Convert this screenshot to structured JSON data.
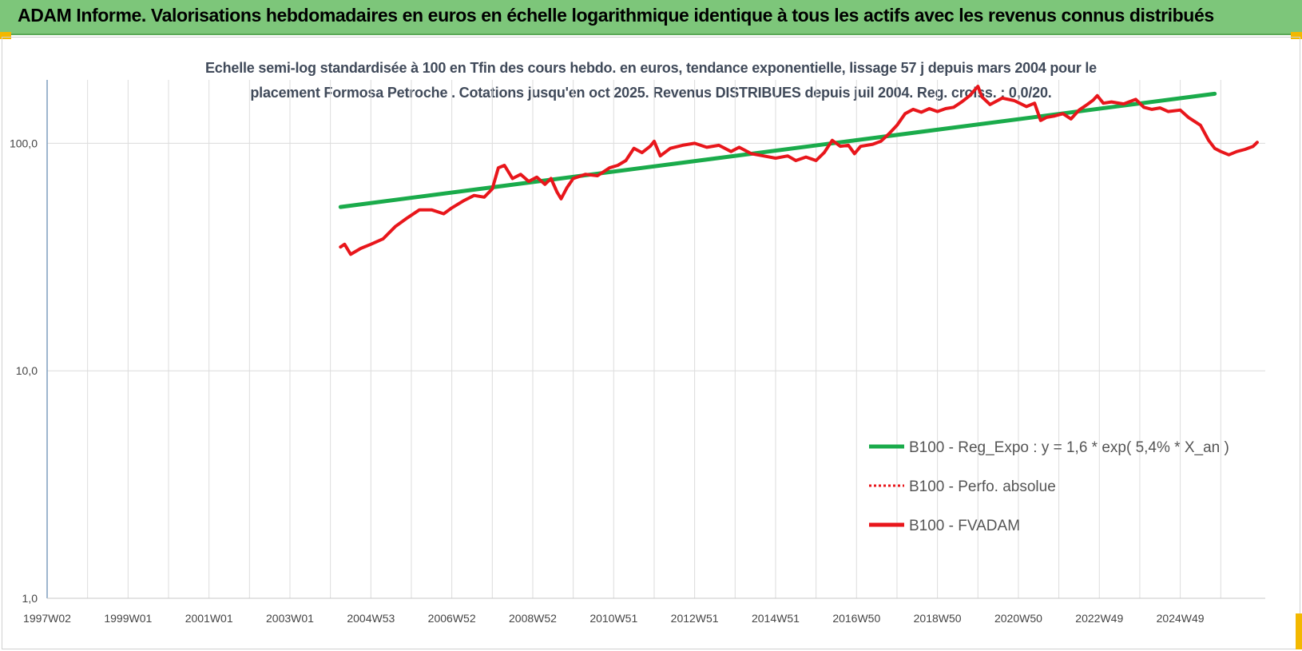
{
  "header": {
    "title": "ADAM Informe. Valorisations hebdomadaires en euros en échelle logarithmique identique à tous les actifs avec les revenus connus distribués"
  },
  "chart_data": {
    "type": "line",
    "title_line1": "Echelle semi-log standardisée à 100 en Tfin des cours hebdo. en euros, tendance exponentielle, lissage 57 j depuis mars 2004 pour le",
    "title_line2": "placement Formosa Petroche . Cotations jusqu'en oct 2025. Revenus DISTRIBUES depuis juil 2004. Reg. croiss. : 0,0/20.",
    "y_scale": "log",
    "ylim": [
      1,
      190
    ],
    "y_ticks": [
      {
        "value": 1,
        "label": "1,0"
      },
      {
        "value": 10,
        "label": "10,0"
      },
      {
        "value": 100,
        "label": "100,0"
      }
    ],
    "x_range": [
      1997.0,
      2025.9
    ],
    "x_ticks": [
      {
        "x": 1997.0,
        "label": "1997W02"
      },
      {
        "x": 1999.0,
        "label": "1999W01"
      },
      {
        "x": 2001.0,
        "label": "2001W01"
      },
      {
        "x": 2003.0,
        "label": "2003W01"
      },
      {
        "x": 2005.0,
        "label": "2004W53"
      },
      {
        "x": 2007.0,
        "label": "2006W52"
      },
      {
        "x": 2009.0,
        "label": "2008W52"
      },
      {
        "x": 2011.0,
        "label": "2010W51"
      },
      {
        "x": 2013.0,
        "label": "2012W51"
      },
      {
        "x": 2015.0,
        "label": "2014W51"
      },
      {
        "x": 2017.0,
        "label": "2016W50"
      },
      {
        "x": 2019.0,
        "label": "2018W50"
      },
      {
        "x": 2021.0,
        "label": "2020W50"
      },
      {
        "x": 2023.0,
        "label": "2022W49"
      },
      {
        "x": 2025.0,
        "label": "2024W49"
      }
    ],
    "grid": true,
    "legend_position": "bottom-right",
    "series": [
      {
        "name": "B100 - Reg_Expo : y = 1,6 * exp( 5,4% *  X_an )",
        "style": "solid",
        "color": "#1aab4b",
        "points": [
          [
            2004.25,
            52.5
          ],
          [
            2025.85,
            165
          ]
        ]
      },
      {
        "name": "B100 - Perfo. absolue",
        "style": "dotted",
        "color": "#e8161b",
        "points": []
      },
      {
        "name": "B100 - FVADAM",
        "style": "solid",
        "color": "#e8161b",
        "points": [
          [
            2004.25,
            35
          ],
          [
            2004.35,
            36
          ],
          [
            2004.5,
            32.5
          ],
          [
            2004.75,
            34.5
          ],
          [
            2005.0,
            36
          ],
          [
            2005.3,
            38
          ],
          [
            2005.6,
            43
          ],
          [
            2005.9,
            47
          ],
          [
            2006.2,
            51
          ],
          [
            2006.5,
            51
          ],
          [
            2006.8,
            49
          ],
          [
            2007.0,
            52
          ],
          [
            2007.3,
            56
          ],
          [
            2007.55,
            59
          ],
          [
            2007.8,
            58
          ],
          [
            2008.0,
            63
          ],
          [
            2008.15,
            78
          ],
          [
            2008.3,
            80
          ],
          [
            2008.5,
            70
          ],
          [
            2008.7,
            73
          ],
          [
            2008.9,
            68
          ],
          [
            2009.1,
            71
          ],
          [
            2009.3,
            66
          ],
          [
            2009.45,
            70
          ],
          [
            2009.6,
            61
          ],
          [
            2009.7,
            57
          ],
          [
            2009.85,
            64
          ],
          [
            2010.0,
            70
          ],
          [
            2010.3,
            73
          ],
          [
            2010.6,
            72
          ],
          [
            2010.9,
            78
          ],
          [
            2011.1,
            80
          ],
          [
            2011.3,
            84
          ],
          [
            2011.5,
            95
          ],
          [
            2011.7,
            91
          ],
          [
            2011.9,
            97
          ],
          [
            2012.0,
            102
          ],
          [
            2012.15,
            88
          ],
          [
            2012.4,
            95
          ],
          [
            2012.7,
            98
          ],
          [
            2013.0,
            100
          ],
          [
            2013.3,
            96
          ],
          [
            2013.6,
            98
          ],
          [
            2013.9,
            92
          ],
          [
            2014.1,
            96
          ],
          [
            2014.4,
            90
          ],
          [
            2014.7,
            88
          ],
          [
            2015.0,
            86
          ],
          [
            2015.3,
            88
          ],
          [
            2015.5,
            84
          ],
          [
            2015.75,
            87
          ],
          [
            2016.0,
            84
          ],
          [
            2016.2,
            91
          ],
          [
            2016.4,
            103
          ],
          [
            2016.6,
            97
          ],
          [
            2016.8,
            98
          ],
          [
            2016.95,
            90
          ],
          [
            2017.1,
            97
          ],
          [
            2017.4,
            99
          ],
          [
            2017.6,
            102
          ],
          [
            2017.8,
            110
          ],
          [
            2018.0,
            120
          ],
          [
            2018.2,
            135
          ],
          [
            2018.4,
            141
          ],
          [
            2018.6,
            137
          ],
          [
            2018.8,
            142
          ],
          [
            2019.0,
            138
          ],
          [
            2019.2,
            142
          ],
          [
            2019.4,
            144
          ],
          [
            2019.6,
            152
          ],
          [
            2019.8,
            162
          ],
          [
            2020.0,
            178
          ],
          [
            2020.1,
            160
          ],
          [
            2020.3,
            148
          ],
          [
            2020.6,
            158
          ],
          [
            2020.9,
            154
          ],
          [
            2021.2,
            145
          ],
          [
            2021.4,
            150
          ],
          [
            2021.55,
            126
          ],
          [
            2021.7,
            130
          ],
          [
            2021.9,
            132
          ],
          [
            2022.1,
            135
          ],
          [
            2022.3,
            128
          ],
          [
            2022.5,
            140
          ],
          [
            2022.7,
            148
          ],
          [
            2022.85,
            155
          ],
          [
            2022.95,
            162
          ],
          [
            2023.1,
            150
          ],
          [
            2023.3,
            152
          ],
          [
            2023.6,
            149
          ],
          [
            2023.9,
            156
          ],
          [
            2024.1,
            144
          ],
          [
            2024.3,
            141
          ],
          [
            2024.5,
            143
          ],
          [
            2024.7,
            138
          ],
          [
            2025.0,
            140
          ],
          [
            2025.2,
            130
          ],
          [
            2025.5,
            120
          ],
          [
            2025.7,
            103
          ],
          [
            2025.85,
            95
          ],
          [
            2026.0,
            92
          ],
          [
            2026.2,
            89
          ],
          [
            2026.4,
            92
          ],
          [
            2026.6,
            94
          ],
          [
            2026.8,
            97
          ],
          [
            2026.9,
            101
          ]
        ]
      }
    ]
  }
}
